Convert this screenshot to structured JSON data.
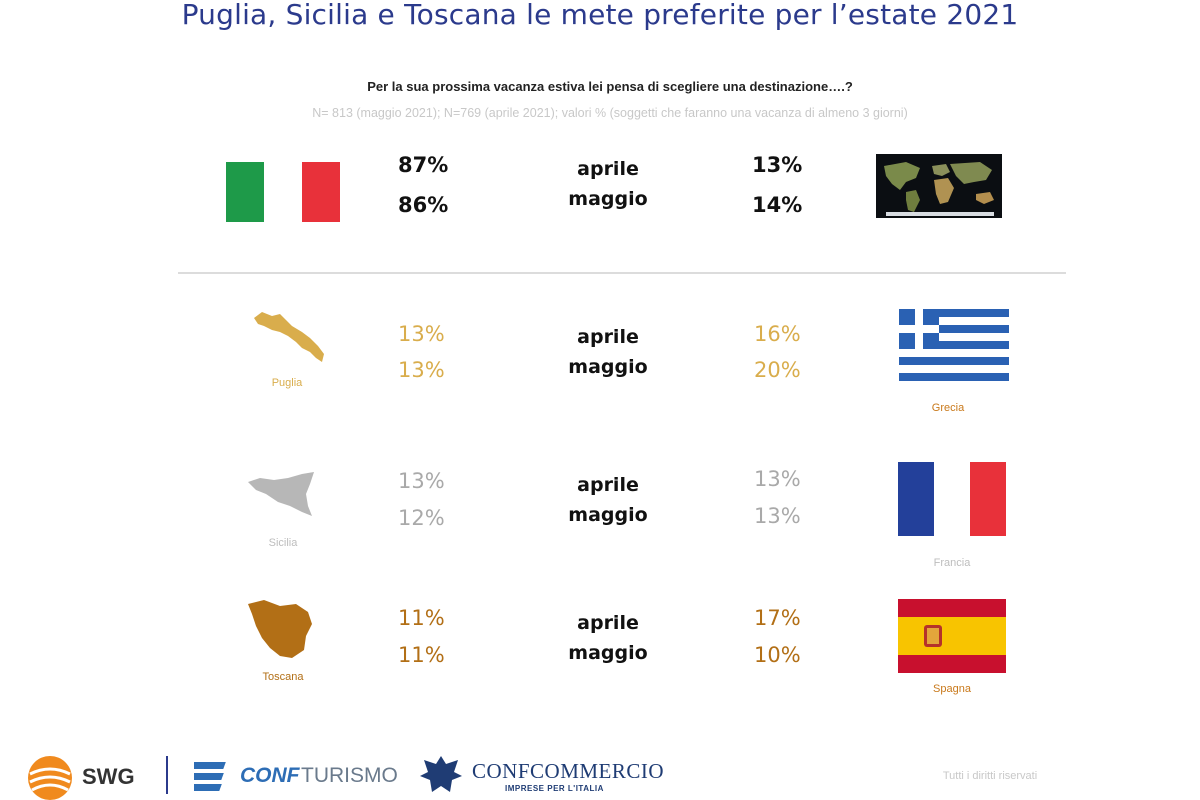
{
  "title": "Puglia, Sicilia e Toscana le mete preferite per l’estate 2021",
  "question": "Per la sua prossima vacanza estiva lei pensa di scegliere una destinazione….?",
  "note": "N= 813 (maggio 2021); N=769 (aprile 2021); valori % (soggetti che faranno una vacanza di almeno 3 giorni)",
  "months": {
    "april": "aprile",
    "may": "maggio"
  },
  "rows": {
    "italy_abroad": {
      "left_april": "87%",
      "left_may": "86%",
      "right_april": "13%",
      "right_may": "14%"
    },
    "puglia_grecia": {
      "left_label": "Puglia",
      "right_label": "Grecia",
      "left_april": "13%",
      "left_may": "13%",
      "right_april": "16%",
      "right_may": "20%"
    },
    "sicilia_francia": {
      "left_label": "Sicilia",
      "right_label": "Francia",
      "left_april": "13%",
      "left_may": "12%",
      "right_april": "13%",
      "right_may": "13%"
    },
    "toscana_spagna": {
      "left_label": "Toscana",
      "right_label": "Spagna",
      "left_april": "11%",
      "left_may": "11%",
      "right_april": "17%",
      "right_may": "10%"
    }
  },
  "footer": {
    "rights": "Tutti i diritti riservati",
    "logo_swg": "SWG",
    "logo_conf": "CONF",
    "logo_turismo": "TURISMO",
    "logo_confcommercio": "CONFCOMMERCIO",
    "logo_confcommercio_sub": "IMPRESE PER L'ITALIA"
  },
  "colors": {
    "title": "#2b3a8c",
    "puglia": "#d9ad4c",
    "sicilia": "#a9a9a9",
    "toscana": "#b26f16"
  },
  "chart_data": {
    "type": "table",
    "title": "Puglia, Sicilia e Toscana le mete preferite per l’estate 2021",
    "columns": [
      "aprile",
      "maggio"
    ],
    "rows": [
      {
        "destination": "Italia",
        "aprile": 87,
        "maggio": 86
      },
      {
        "destination": "Estero",
        "aprile": 13,
        "maggio": 14
      },
      {
        "destination": "Puglia",
        "aprile": 13,
        "maggio": 13
      },
      {
        "destination": "Grecia",
        "aprile": 16,
        "maggio": 20
      },
      {
        "destination": "Sicilia",
        "aprile": 13,
        "maggio": 12
      },
      {
        "destination": "Francia",
        "aprile": 13,
        "maggio": 13
      },
      {
        "destination": "Toscana",
        "aprile": 11,
        "maggio": 11
      },
      {
        "destination": "Spagna",
        "aprile": 17,
        "maggio": 10
      }
    ]
  }
}
